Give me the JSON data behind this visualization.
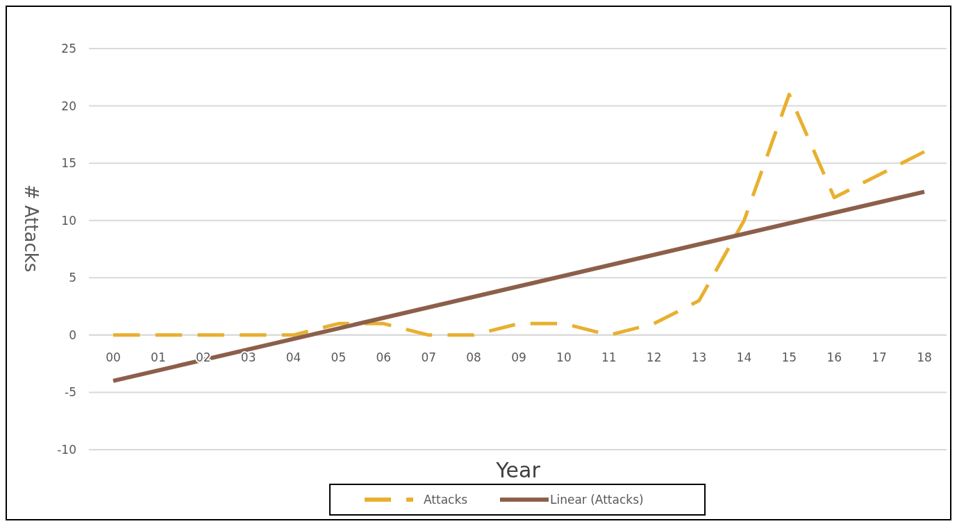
{
  "chart_data": {
    "type": "line",
    "xlabel": "Year",
    "ylabel": "# Attacks",
    "categories": [
      "00",
      "01",
      "02",
      "03",
      "04",
      "05",
      "06",
      "07",
      "08",
      "09",
      "10",
      "11",
      "12",
      "13",
      "14",
      "15",
      "16",
      "17",
      "18"
    ],
    "series": [
      {
        "name": "Attacks",
        "color": "#e8b02f",
        "line_style": "dashed",
        "values": [
          0,
          0,
          0,
          0,
          0,
          1,
          1,
          0,
          0,
          1,
          1,
          0,
          1,
          3,
          10,
          21,
          12,
          14,
          16
        ]
      },
      {
        "name": "Linear (Attacks)",
        "color": "#8c5f4b",
        "line_style": "solid",
        "x": [
          "00",
          "18"
        ],
        "values": [
          -4.0,
          12.5
        ]
      }
    ],
    "ylim": [
      -10,
      25
    ],
    "yticks": [
      -10,
      -5,
      0,
      5,
      10,
      15,
      20,
      25
    ],
    "grid": "y",
    "legend": "bottom"
  }
}
